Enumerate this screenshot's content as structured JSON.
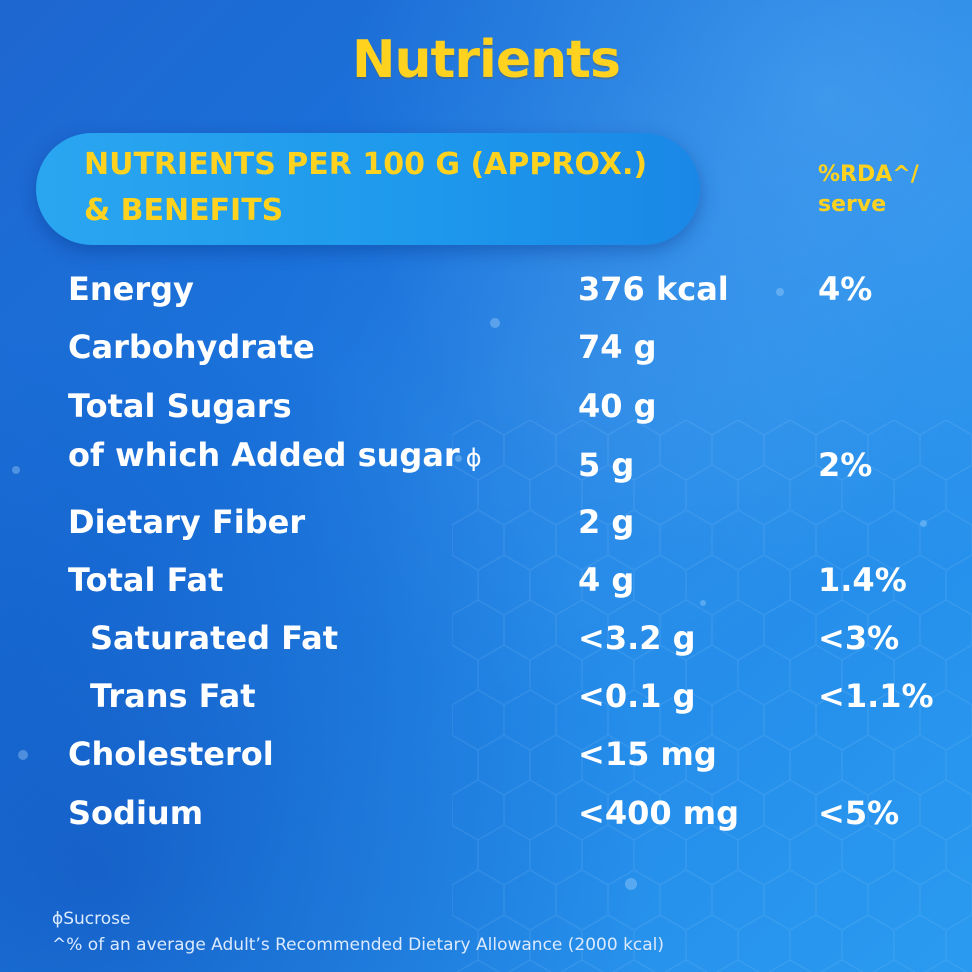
{
  "title": "Nutrients",
  "header": {
    "line1": "NUTRIENTS PER 100 G (APPROX.)",
    "line2": "& BENEFITS",
    "rda_line1": "%RDA^/",
    "rda_line2": "serve"
  },
  "rows": [
    {
      "name": "Energy",
      "amount": "376 kcal",
      "rda": "4%"
    },
    {
      "name": "Carbohydrate",
      "amount": "74 g",
      "rda": ""
    },
    {
      "name": "Total Sugars",
      "amount": "40 g",
      "rda": ""
    },
    {
      "name": "of which Added sugar",
      "symbol": "ϕ",
      "amount": "5 g",
      "rda": "2%"
    },
    {
      "name": "Dietary Fiber",
      "amount": "2 g",
      "rda": ""
    },
    {
      "name": "Total Fat",
      "amount": "4 g",
      "rda": "1.4%"
    },
    {
      "name": "Saturated Fat",
      "amount": "<3.2 g",
      "rda": "<3%"
    },
    {
      "name": "Trans Fat",
      "amount": "<0.1 g",
      "rda": "<1.1%"
    },
    {
      "name": "Cholesterol",
      "amount": "<15 mg",
      "rda": ""
    },
    {
      "name": "Sodium",
      "amount": "<400 mg",
      "rda": "<5%"
    }
  ],
  "footnotes": {
    "note1": "ϕSucrose",
    "note2": "^% of an average Adult’s Recommended Dietary Allowance (2000 kcal)"
  },
  "colors": {
    "accent_yellow": "#ffd21f",
    "background_blue": "#1e66d0",
    "pill_blue": "#2aa6f0",
    "text_white": "#ffffff"
  }
}
